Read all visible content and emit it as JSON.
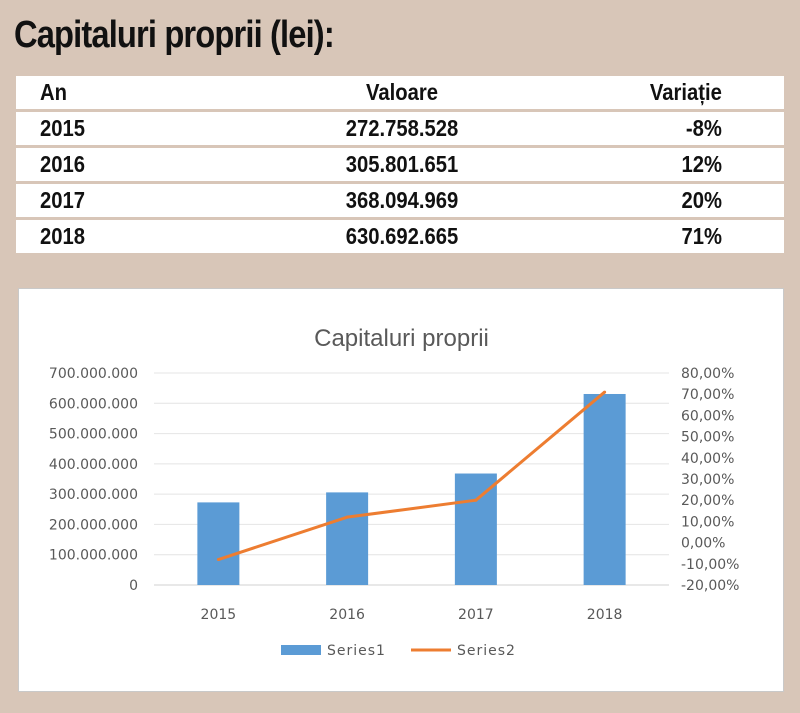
{
  "heading": "Capitaluri proprii (lei):",
  "table": {
    "headers": [
      "An",
      "Valoare",
      "Variație"
    ],
    "rows": [
      [
        "2015",
        "272.758.528",
        "-8%"
      ],
      [
        "2016",
        "305.801.651",
        "12%"
      ],
      [
        "2017",
        "368.094.969",
        "20%"
      ],
      [
        "2018",
        "630.692.665",
        "71%"
      ]
    ]
  },
  "colors": {
    "background": "#d8c6b8",
    "bar": "#5b9bd5",
    "line": "#ed7d31"
  },
  "chart_data": {
    "type": "bar",
    "title": "Capitaluri proprii",
    "categories": [
      "2015",
      "2016",
      "2017",
      "2018"
    ],
    "series": [
      {
        "name": "Series1",
        "type": "bar",
        "axis": "left",
        "values": [
          272758528,
          305801651,
          368094969,
          630692665
        ]
      },
      {
        "name": "Series2",
        "type": "line",
        "axis": "right",
        "values": [
          -0.08,
          0.12,
          0.2,
          0.71
        ]
      }
    ],
    "ylim_left": [
      0,
      700000000
    ],
    "yticks_left": [
      "0",
      "100.000.000",
      "200.000.000",
      "300.000.000",
      "400.000.000",
      "500.000.000",
      "600.000.000",
      "700.000.000"
    ],
    "ylim_right": [
      -0.2,
      0.8
    ],
    "yticks_right": [
      "-20,00%",
      "-10,00%",
      "0,00%",
      "10,00%",
      "20,00%",
      "30,00%",
      "40,00%",
      "50,00%",
      "60,00%",
      "70,00%",
      "80,00%"
    ],
    "grid": true,
    "legend": "bottom"
  }
}
